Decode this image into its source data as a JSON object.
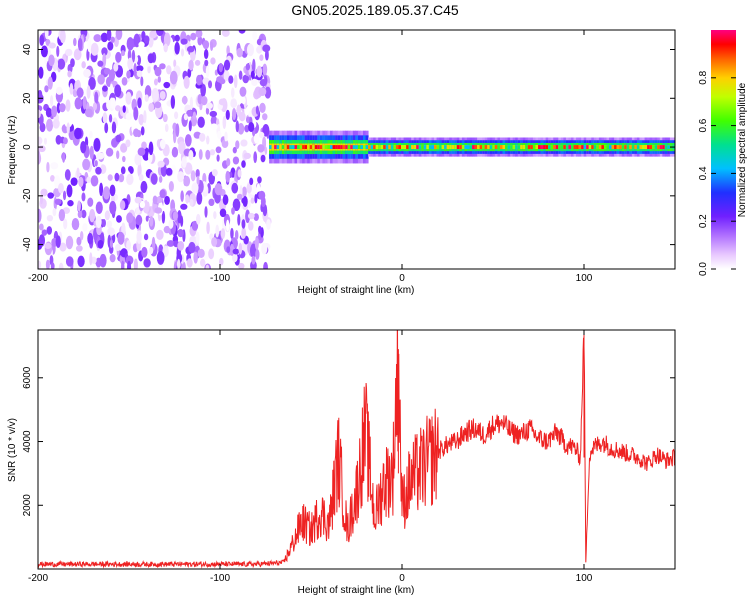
{
  "title": "GN05.2025.189.05.37.C45",
  "chart_data": [
    {
      "type": "heatmap",
      "xlabel": "Height of straight line (km)",
      "ylabel": "Frequency (Hz)",
      "xlim": [
        -200,
        150
      ],
      "ylim": [
        -50,
        48
      ],
      "xticks": [
        -200,
        -100,
        0,
        100
      ],
      "yticks": [
        -40,
        -20,
        0,
        20,
        40
      ],
      "colorbar": {
        "label": "Normalized spectral amplitude",
        "range": [
          0.0,
          1.0
        ],
        "ticks": [
          0.0,
          0.2,
          0.4,
          0.6,
          0.8
        ],
        "colormap": [
          "#ffffff",
          "#e8c8ff",
          "#b070ff",
          "#7020ff",
          "#2030ff",
          "#00c0ff",
          "#00e090",
          "#40ff00",
          "#c0ff00",
          "#ffd000",
          "#ff6000",
          "#ff0000",
          "#ff0080"
        ]
      },
      "regions": [
        {
          "x_range": [
            -200,
            -73
          ],
          "frequency_range": [
            -50,
            48
          ],
          "description": "broadband noise",
          "amplitude_range": [
            0.0,
            0.25
          ]
        },
        {
          "x_range": [
            -73,
            150
          ],
          "frequency_center": 0,
          "frequency_halfwidth": 4,
          "description": "narrow band near 0 Hz",
          "amplitude_range": [
            0.4,
            1.0
          ]
        }
      ]
    },
    {
      "type": "line",
      "xlabel": "Height of straight line (km)",
      "ylabel": "SNR (10 * v/v)",
      "xlim": [
        -200,
        150
      ],
      "ylim": [
        0,
        7500
      ],
      "xticks": [
        -200,
        -100,
        0,
        100
      ],
      "yticks": [
        2000,
        4000,
        6000
      ],
      "color": "#ff0000",
      "x": [
        -200,
        -180,
        -160,
        -140,
        -120,
        -100,
        -80,
        -65,
        -60,
        -55,
        -50,
        -45,
        -40,
        -35,
        -30,
        -25,
        -20,
        -15,
        -10,
        -5,
        -2,
        0,
        5,
        10,
        15,
        20,
        25,
        30,
        35,
        40,
        45,
        50,
        55,
        60,
        65,
        70,
        75,
        80,
        85,
        90,
        95,
        98,
        100,
        101,
        103,
        105,
        110,
        115,
        120,
        125,
        130,
        135,
        140,
        145,
        150
      ],
      "y": [
        150,
        150,
        150,
        150,
        150,
        150,
        150,
        200,
        800,
        1500,
        1200,
        1800,
        1400,
        3500,
        1200,
        2400,
        4300,
        1600,
        2700,
        3000,
        6900,
        2000,
        2800,
        3100,
        3400,
        3700,
        3900,
        4000,
        4300,
        4400,
        4200,
        4500,
        4600,
        4300,
        4200,
        4400,
        4100,
        4000,
        4300,
        3900,
        3800,
        3500,
        7500,
        200,
        3600,
        3800,
        4000,
        3800,
        3700,
        3600,
        3500,
        3300,
        3600,
        3400,
        3500
      ],
      "annotations": [
        {
          "x": -2,
          "y": 6900,
          "note": "spike"
        },
        {
          "x": 100,
          "y": 7500,
          "note": "spike with dropout"
        }
      ]
    }
  ]
}
